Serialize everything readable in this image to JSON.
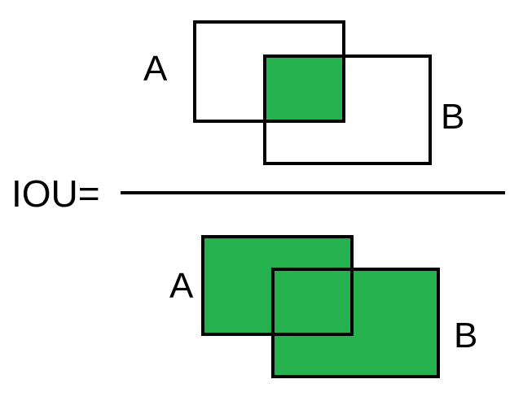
{
  "formula": {
    "label": "IOU="
  },
  "numerator": {
    "box_a_label": "A",
    "box_b_label": "B",
    "fill_color": "#25b14d"
  },
  "denominator": {
    "box_a_label": "A",
    "box_b_label": "B",
    "fill_color": "#25b14d"
  },
  "colors": {
    "stroke": "#000000",
    "fill": "#25b14d",
    "background": "#ffffff"
  }
}
